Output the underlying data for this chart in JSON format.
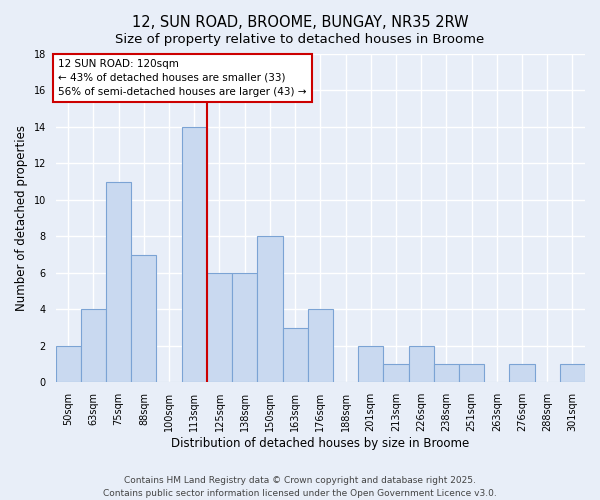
{
  "title": "12, SUN ROAD, BROOME, BUNGAY, NR35 2RW",
  "subtitle": "Size of property relative to detached houses in Broome",
  "xlabel": "Distribution of detached houses by size in Broome",
  "ylabel": "Number of detached properties",
  "categories": [
    "50sqm",
    "63sqm",
    "75sqm",
    "88sqm",
    "100sqm",
    "113sqm",
    "125sqm",
    "138sqm",
    "150sqm",
    "163sqm",
    "176sqm",
    "188sqm",
    "201sqm",
    "213sqm",
    "226sqm",
    "238sqm",
    "251sqm",
    "263sqm",
    "276sqm",
    "288sqm",
    "301sqm"
  ],
  "values": [
    2,
    4,
    11,
    7,
    0,
    14,
    6,
    6,
    8,
    3,
    4,
    0,
    2,
    1,
    2,
    1,
    1,
    0,
    1,
    0,
    1
  ],
  "bar_color": "#c9d9f0",
  "bar_edge_color": "#7ba3d4",
  "background_color": "#e8eef8",
  "grid_color": "#ffffff",
  "marker_label": "12 SUN ROAD: 120sqm",
  "annotation_line1": "← 43% of detached houses are smaller (33)",
  "annotation_line2": "56% of semi-detached houses are larger (43) →",
  "annotation_box_color": "#ffffff",
  "annotation_box_edge": "#cc0000",
  "vline_color": "#cc0000",
  "vline_x": 5.5,
  "ylim": [
    0,
    18
  ],
  "yticks": [
    0,
    2,
    4,
    6,
    8,
    10,
    12,
    14,
    16,
    18
  ],
  "footer1": "Contains HM Land Registry data © Crown copyright and database right 2025.",
  "footer2": "Contains public sector information licensed under the Open Government Licence v3.0.",
  "title_fontsize": 10.5,
  "subtitle_fontsize": 9.5,
  "axis_label_fontsize": 8.5,
  "tick_fontsize": 7,
  "annot_fontsize": 7.5,
  "footer_fontsize": 6.5
}
